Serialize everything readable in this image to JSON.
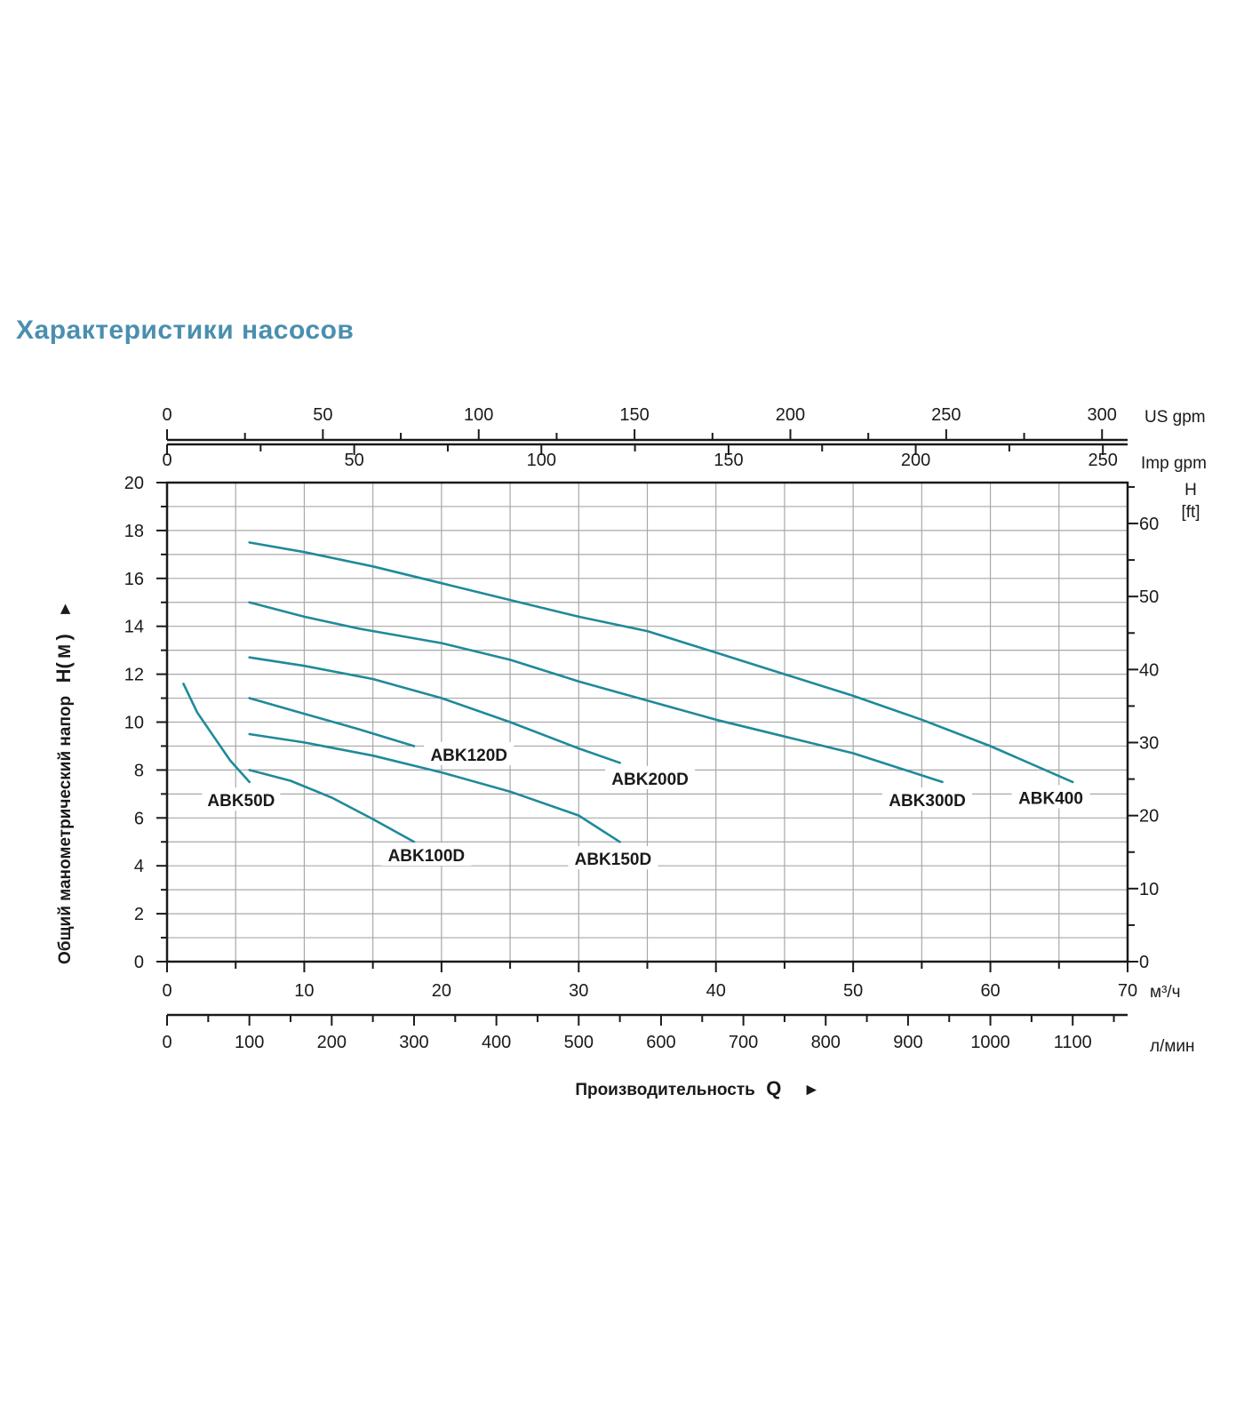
{
  "page": {
    "title": "Характеристики насосов"
  },
  "colors": {
    "title": "#4a8fae",
    "curve": "#1f8a9a",
    "grid": "#a8a8a8",
    "axis": "#1a1a1a"
  },
  "chart_data": {
    "type": "line",
    "title": "Характеристики насосов",
    "xlabel": "Производительность",
    "xlabel_symbol": "Q",
    "xlabel_arrow": "►",
    "ylabel": "Общий манометрический напор",
    "ylabel_symbol": "H(",
    "ylabel_unit": "M",
    "ylabel_close": ")",
    "ylabel_arrow": "►",
    "xlim": [
      0,
      70
    ],
    "ylim": [
      0,
      20
    ],
    "grid": true,
    "x_axis_unit": "м³/ч",
    "x_ticks": [
      0,
      10,
      20,
      30,
      40,
      50,
      60,
      70
    ],
    "y_ticks": [
      0,
      2,
      4,
      6,
      8,
      10,
      12,
      14,
      16,
      18,
      20
    ],
    "lpm_axis": {
      "unit": "л/мин",
      "range": [
        0,
        1166.67
      ],
      "ticks": [
        0,
        100,
        200,
        300,
        400,
        500,
        600,
        700,
        800,
        900,
        1000,
        1100
      ]
    },
    "us_gpm_axis": {
      "unit": "US gpm",
      "range": [
        0,
        308.2
      ],
      "ticks": [
        0,
        50,
        100,
        150,
        200,
        250,
        300
      ]
    },
    "imp_gpm_axis": {
      "unit": "Imp gpm",
      "range": [
        0,
        256.6
      ],
      "ticks": [
        0,
        50,
        100,
        150,
        200,
        250
      ]
    },
    "ft_axis": {
      "unit_line1": "H",
      "unit_line2": "[ft]",
      "range": [
        0,
        65.6
      ],
      "ticks": [
        0,
        10,
        20,
        30,
        40,
        50,
        60
      ]
    },
    "series": [
      {
        "name": "ABK50D",
        "points": [
          [
            1.2,
            11.6
          ],
          [
            2.2,
            10.4
          ],
          [
            3.4,
            9.4
          ],
          [
            4.6,
            8.4
          ],
          [
            6,
            7.5
          ]
        ]
      },
      {
        "name": "ABK100D",
        "points": [
          [
            6,
            8.0
          ],
          [
            9,
            7.55
          ],
          [
            12,
            6.85
          ],
          [
            15,
            5.95
          ],
          [
            18,
            5.0
          ]
        ]
      },
      {
        "name": "ABK120D",
        "points": [
          [
            6,
            11.0
          ],
          [
            10,
            10.35
          ],
          [
            14,
            9.7
          ],
          [
            18,
            9.0
          ]
        ]
      },
      {
        "name": "ABK150D",
        "points": [
          [
            6,
            9.5
          ],
          [
            10,
            9.15
          ],
          [
            15,
            8.6
          ],
          [
            20,
            7.9
          ],
          [
            25,
            7.1
          ],
          [
            30,
            6.1
          ],
          [
            33,
            5.0
          ]
        ]
      },
      {
        "name": "ABK200D",
        "points": [
          [
            6,
            12.7
          ],
          [
            10,
            12.35
          ],
          [
            15,
            11.8
          ],
          [
            20,
            11.0
          ],
          [
            25,
            10.0
          ],
          [
            30,
            8.9
          ],
          [
            33,
            8.3
          ]
        ]
      },
      {
        "name": "ABK300D",
        "points": [
          [
            6,
            15.0
          ],
          [
            10,
            14.4
          ],
          [
            14,
            13.9
          ],
          [
            20,
            13.3
          ],
          [
            25,
            12.6
          ],
          [
            30,
            11.7
          ],
          [
            35,
            10.9
          ],
          [
            40,
            10.1
          ],
          [
            45,
            9.4
          ],
          [
            50,
            8.7
          ],
          [
            56.5,
            7.5
          ]
        ]
      },
      {
        "name": "ABK400",
        "points": [
          [
            6,
            17.5
          ],
          [
            10,
            17.1
          ],
          [
            15,
            16.5
          ],
          [
            20,
            15.8
          ],
          [
            25,
            15.1
          ],
          [
            30,
            14.4
          ],
          [
            35,
            13.8
          ],
          [
            40,
            12.9
          ],
          [
            45,
            12.0
          ],
          [
            50,
            11.1
          ],
          [
            55,
            10.1
          ],
          [
            60,
            9.0
          ],
          [
            66,
            7.5
          ]
        ]
      }
    ]
  }
}
